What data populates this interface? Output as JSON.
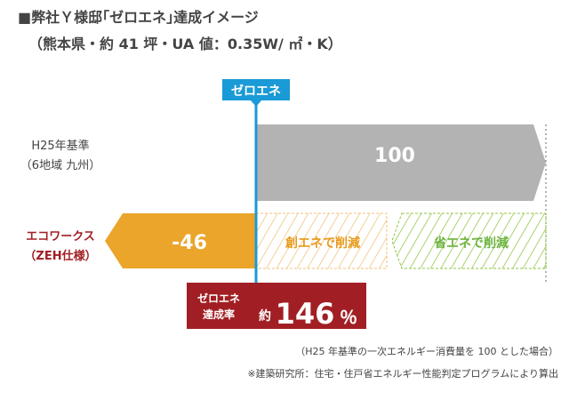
{
  "title": "■弊社Ｙ様邸｢ゼロエネ｣達成イメージ",
  "subtitle": "（熊本県・約 41 坪・UA 値：0.35W/ ㎡・K）",
  "colors": {
    "gray_bar": "#b3b3b3",
    "orange_bar": "#eaa52a",
    "zero_line": "#1a9ad6",
    "red": "#a11f24",
    "hatch_orange": "#f0c27a",
    "hatch_green": "#8dc63f",
    "hatch_text": "#e89a1c",
    "green_text": "#6db33f"
  },
  "chart_data": {
    "type": "bar",
    "orientation": "horizontal",
    "categories": [
      {
        "label_line1": "H25年基準",
        "label_line2": "（6地域 九州）",
        "label_color": "#444444"
      },
      {
        "label_line1": "エコワークス",
        "label_line2": "（ZEH仕様）",
        "label_color": "#a11f24"
      }
    ],
    "values": [
      100,
      -46
    ],
    "value_labels": [
      "100",
      "-46"
    ],
    "zero_marker_label": "ゼロエネ",
    "segments": [
      {
        "label": "創エネで削減",
        "from": 0,
        "to": 46
      },
      {
        "label": "省エネで削減",
        "from": 46,
        "to": 100
      }
    ],
    "achievement": {
      "label_line1": "ゼロエネ",
      "label_line2": "達成率",
      "prefix": "約",
      "value": "146",
      "unit": "％"
    },
    "xlim": [
      -46,
      100
    ]
  },
  "notes": {
    "line1": "（H25 年基準の一次エネルギー消費量を 100 とした場合）",
    "line2": "※建築研究所：住宅・住戸省エネルギー性能判定プログラムにより算出"
  }
}
